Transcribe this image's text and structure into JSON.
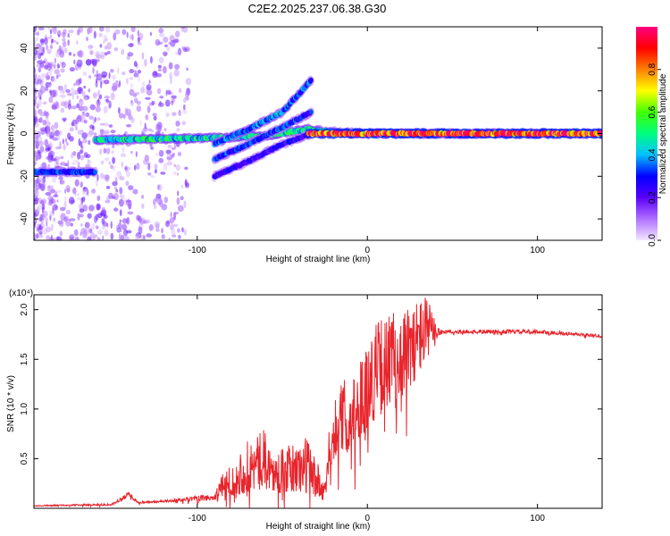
{
  "title": "C2E2.2025.237.06.38.G30",
  "chart_data": [
    {
      "type": "heatmap",
      "name": "spectrogram",
      "xlabel": "Height of straight line (km)",
      "ylabel": "Frequency (Hz)",
      "xlim": [
        -196,
        138
      ],
      "ylim": [
        -50,
        50
      ],
      "xticks": [
        -100,
        0,
        100
      ],
      "yticks": [
        -40,
        -20,
        0,
        20,
        40
      ],
      "colorbar": {
        "label": "Normalized spectral amplitude",
        "range": [
          0,
          1
        ],
        "ticks": [
          0.0,
          0.2,
          0.4,
          0.6,
          0.8
        ],
        "tick_labels": [
          "0.0",
          "0.2",
          "0.4",
          "0.6",
          "0.8"
        ],
        "colors": [
          "#f2e6ff",
          "#b070ff",
          "#5a00ff",
          "#0000ff",
          "#00c0ff",
          "#00ff80",
          "#40ff00",
          "#ffff00",
          "#ff8000",
          "#ff0000",
          "#ff0080"
        ]
      },
      "features": [
        {
          "name": "noise-region",
          "x_range": [
            -196,
            -105
          ],
          "freq_range": [
            -50,
            50
          ],
          "amplitude": 0.05
        },
        {
          "name": "early-branch",
          "x": [
            -196,
            -160
          ],
          "freq": [
            -18,
            -18
          ],
          "amplitude": 0.3
        },
        {
          "name": "main-branch",
          "x": [
            -160,
            -90,
            -60,
            -35,
            -25,
            0,
            50,
            100,
            138
          ],
          "freq": [
            -3,
            -2,
            -1,
            2,
            1,
            0,
            0,
            0,
            0
          ],
          "amplitude": 0.45
        },
        {
          "name": "upper-arc",
          "x": [
            -90,
            -70,
            -50,
            -33
          ],
          "freq": [
            -5,
            2,
            10,
            25
          ],
          "amplitude": 0.35
        },
        {
          "name": "middle-arc",
          "x": [
            -90,
            -70,
            -50,
            -33
          ],
          "freq": [
            -12,
            -5,
            3,
            10
          ],
          "amplitude": 0.3
        },
        {
          "name": "lower-arc",
          "x": [
            -90,
            -70,
            -50,
            -33
          ],
          "freq": [
            -20,
            -13,
            -5,
            0
          ],
          "amplitude": 0.25
        },
        {
          "name": "strong-line",
          "x": [
            -35,
            138
          ],
          "freq": [
            0,
            0
          ],
          "amplitude": 0.9
        }
      ]
    },
    {
      "type": "line",
      "name": "snr",
      "xlabel": "Height of straight line (km)",
      "ylabel": "SNR (10 * v/v)",
      "scale_label": "(x10⁴)",
      "xlim": [
        -196,
        138
      ],
      "ylim": [
        0,
        2.15
      ],
      "xticks": [
        -100,
        0,
        100
      ],
      "yticks": [
        0.5,
        1.0,
        1.5,
        2.0
      ],
      "ytick_labels": [
        "0.5",
        "1.0",
        "1.5",
        "2.0"
      ],
      "series_color": "#e8242c",
      "envelope": {
        "x": [
          -196,
          -150,
          -140,
          -135,
          -120,
          -90,
          -85,
          -70,
          -60,
          -55,
          -35,
          -25,
          -22,
          -18,
          -10,
          -5,
          5,
          15,
          25,
          30,
          35,
          40,
          45,
          100,
          138
        ],
        "base": [
          0.02,
          0.03,
          0.12,
          0.05,
          0.06,
          0.08,
          0.12,
          0.15,
          0.25,
          0.15,
          0.15,
          0.05,
          0.4,
          0.55,
          0.6,
          0.7,
          0.9,
          1.05,
          1.2,
          1.35,
          1.5,
          1.7,
          1.76,
          1.76,
          1.72
        ],
        "peak": [
          0.03,
          0.05,
          0.18,
          0.07,
          0.08,
          0.15,
          0.35,
          0.7,
          0.8,
          0.55,
          0.75,
          0.25,
          0.9,
          1.2,
          1.4,
          1.5,
          1.9,
          2.0,
          2.05,
          2.15,
          2.15,
          1.9,
          1.8,
          1.8,
          1.75
        ]
      }
    }
  ]
}
